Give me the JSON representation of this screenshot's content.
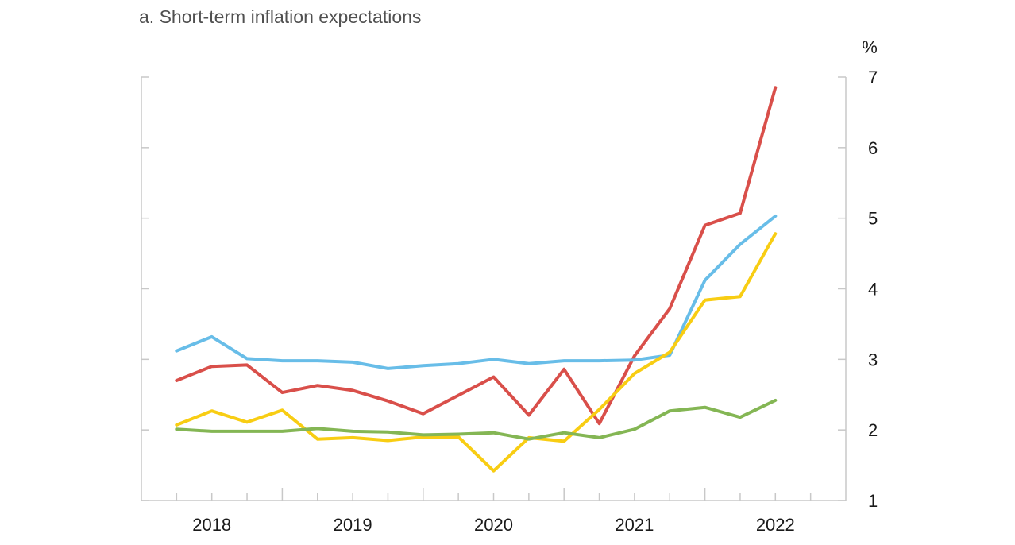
{
  "chart_data": {
    "type": "line",
    "title": "a. Short-term inflation expectations",
    "xlabel": "",
    "ylabel": "%",
    "ylim": [
      1,
      7
    ],
    "y_ticks": [
      "1",
      "2",
      "3",
      "4",
      "5",
      "6",
      "7"
    ],
    "x_tick_labels": [
      "2018",
      "2019",
      "2020",
      "2021",
      "2022"
    ],
    "x_range": [
      2017.5,
      2022.5
    ],
    "grid": false,
    "legend": "none",
    "axis_color": "#c8c8c8",
    "x": [
      2017.75,
      2018.0,
      2018.25,
      2018.5,
      2018.75,
      2019.0,
      2019.25,
      2019.5,
      2019.75,
      2020.0,
      2020.25,
      2020.5,
      2020.75,
      2021.0,
      2021.25,
      2021.5,
      2021.75,
      2022.0
    ],
    "series": [
      {
        "color": "#d94f4a",
        "values": [
          2.7,
          2.9,
          2.92,
          2.53,
          2.63,
          2.56,
          2.41,
          2.23,
          2.49,
          2.75,
          2.21,
          2.86,
          2.09,
          3.05,
          3.72,
          4.9,
          5.07,
          6.85
        ]
      },
      {
        "color": "#68bde8",
        "values": [
          3.12,
          3.32,
          3.01,
          2.98,
          2.98,
          2.96,
          2.87,
          2.91,
          2.94,
          3.0,
          2.94,
          2.98,
          2.98,
          2.99,
          3.06,
          4.12,
          4.63,
          5.03
        ]
      },
      {
        "color": "#f8cd13",
        "values": [
          2.07,
          2.27,
          2.11,
          2.28,
          1.87,
          1.89,
          1.85,
          1.9,
          1.9,
          1.42,
          1.89,
          1.84,
          2.29,
          2.8,
          3.1,
          3.84,
          3.89,
          4.78
        ]
      },
      {
        "color": "#84b654",
        "values": [
          2.01,
          1.98,
          1.98,
          1.98,
          2.02,
          1.98,
          1.97,
          1.93,
          1.94,
          1.96,
          1.87,
          1.96,
          1.89,
          2.01,
          2.27,
          2.32,
          2.18,
          2.42
        ]
      }
    ]
  }
}
